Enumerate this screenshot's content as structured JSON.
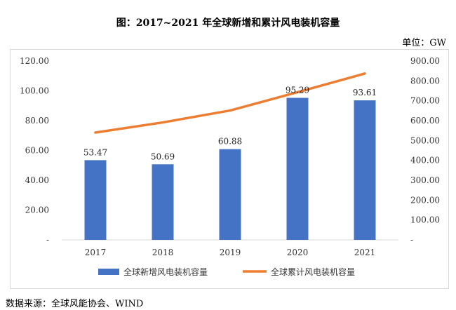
{
  "title": "图：2017~2021 年全球新增和累计风电装机容量",
  "unit": "单位：GW",
  "source": "数据来源：全球风能协会、WIND",
  "chart_data": {
    "type": "bar",
    "categories": [
      "2017",
      "2018",
      "2019",
      "2020",
      "2021"
    ],
    "series": [
      {
        "name": "全球新增风电装机容量",
        "type": "bar",
        "axis": "left",
        "color": "#4472C4",
        "values": [
          53.47,
          50.69,
          60.88,
          95.29,
          93.61
        ],
        "labels": [
          "53.47",
          "50.69",
          "60.88",
          "95.29",
          "93.61"
        ]
      },
      {
        "name": "全球累计风电装机容量",
        "type": "line",
        "axis": "right",
        "color": "#ED7D31",
        "values": [
          540,
          591,
          651,
          743,
          837
        ]
      }
    ],
    "ylim_left": [
      0,
      120
    ],
    "ylim_right": [
      0,
      900
    ],
    "yticks_left": [
      "-",
      "20.00",
      "40.00",
      "60.00",
      "80.00",
      "100.00",
      "120.00"
    ],
    "yticks_right": [
      "-",
      "100.00",
      "200.00",
      "300.00",
      "400.00",
      "500.00",
      "600.00",
      "700.00",
      "800.00",
      "900.00"
    ],
    "legend": "bottom",
    "grid": false
  }
}
